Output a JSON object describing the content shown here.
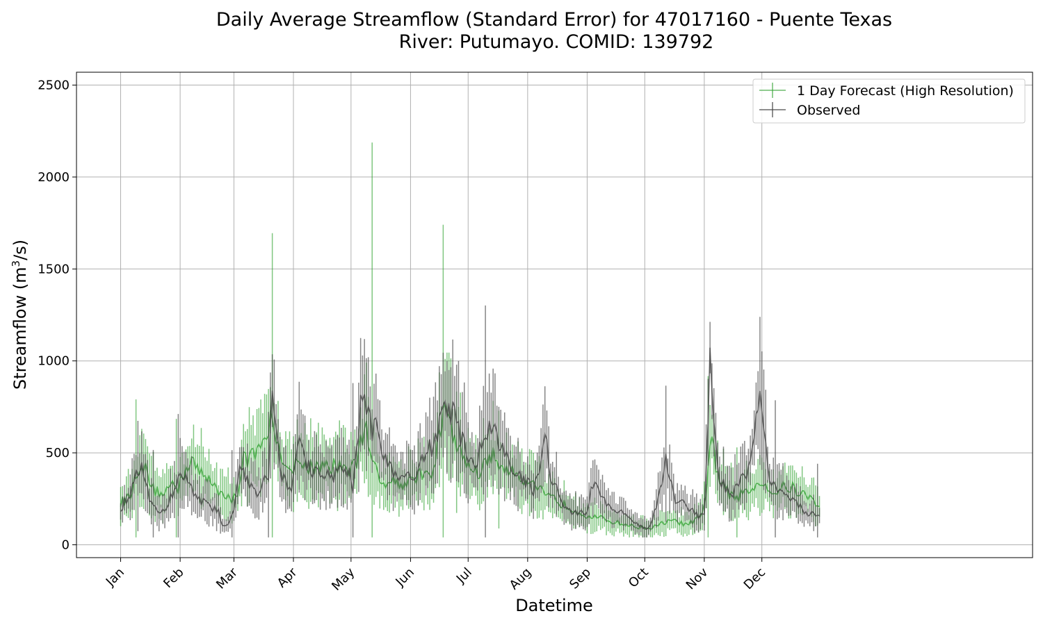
{
  "chart_data": {
    "type": "line",
    "title_line1": "Daily Average Streamflow (Standard Error) for 47017160 - Puente Texas",
    "title_line2": "River: Putumayo. COMID: 139792",
    "xlabel": "Datetime",
    "ylabel_main": "Streamflow (m",
    "ylabel_sup": "3",
    "ylabel_end": "/s)",
    "ylim": [
      -70,
      2570
    ],
    "yticks": [
      0,
      500,
      1000,
      1500,
      2000,
      2500
    ],
    "xlim": [
      -22,
      476
    ],
    "x_unit": "day of year",
    "xticks": [
      {
        "label": "Jan",
        "day": 1
      },
      {
        "label": "Feb",
        "day": 32
      },
      {
        "label": "Mar",
        "day": 60
      },
      {
        "label": "Apr",
        "day": 91
      },
      {
        "label": "May",
        "day": 121
      },
      {
        "label": "Jun",
        "day": 152
      },
      {
        "label": "Jul",
        "day": 182
      },
      {
        "label": "Aug",
        "day": 213
      },
      {
        "label": "Sep",
        "day": 244
      },
      {
        "label": "Oct",
        "day": 274
      },
      {
        "label": "Nov",
        "day": 305
      },
      {
        "label": "Dec",
        "day": 335
      }
    ],
    "grid": true,
    "legend": "top-right",
    "series": [
      {
        "name": "1 Day Forecast (High Resolution)",
        "color": "#2ca02c",
        "anchors": [
          [
            1,
            230
          ],
          [
            6,
            260
          ],
          [
            8,
            330
          ],
          [
            10,
            420
          ],
          [
            12,
            450
          ],
          [
            15,
            380
          ],
          [
            18,
            300
          ],
          [
            22,
            280
          ],
          [
            25,
            300
          ],
          [
            28,
            330
          ],
          [
            31,
            300
          ],
          [
            35,
            420
          ],
          [
            38,
            470
          ],
          [
            41,
            400
          ],
          [
            45,
            360
          ],
          [
            48,
            350
          ],
          [
            52,
            300
          ],
          [
            56,
            280
          ],
          [
            58,
            240
          ],
          [
            60,
            250
          ],
          [
            63,
            310
          ],
          [
            65,
            480
          ],
          [
            68,
            470
          ],
          [
            72,
            490
          ],
          [
            75,
            520
          ],
          [
            78,
            600
          ],
          [
            80,
            750
          ],
          [
            82,
            520
          ],
          [
            85,
            490
          ],
          [
            88,
            440
          ],
          [
            90,
            420
          ],
          [
            93,
            430
          ],
          [
            96,
            440
          ],
          [
            100,
            430
          ],
          [
            104,
            410
          ],
          [
            108,
            420
          ],
          [
            112,
            430
          ],
          [
            116,
            440
          ],
          [
            120,
            420
          ],
          [
            124,
            450
          ],
          [
            127,
            600
          ],
          [
            129,
            700
          ],
          [
            130,
            600
          ],
          [
            132,
            470
          ],
          [
            136,
            380
          ],
          [
            140,
            340
          ],
          [
            144,
            350
          ],
          [
            148,
            330
          ],
          [
            152,
            350
          ],
          [
            156,
            380
          ],
          [
            160,
            360
          ],
          [
            164,
            420
          ],
          [
            167,
            600
          ],
          [
            169,
            700
          ],
          [
            171,
            730
          ],
          [
            174,
            600
          ],
          [
            178,
            500
          ],
          [
            182,
            440
          ],
          [
            186,
            390
          ],
          [
            190,
            420
          ],
          [
            193,
            500
          ],
          [
            196,
            460
          ],
          [
            200,
            420
          ],
          [
            204,
            390
          ],
          [
            208,
            380
          ],
          [
            212,
            360
          ],
          [
            216,
            330
          ],
          [
            220,
            300
          ],
          [
            224,
            260
          ],
          [
            228,
            240
          ],
          [
            232,
            220
          ],
          [
            236,
            200
          ],
          [
            240,
            180
          ],
          [
            244,
            160
          ],
          [
            248,
            150
          ],
          [
            252,
            140
          ],
          [
            256,
            130
          ],
          [
            260,
            120
          ],
          [
            264,
            110
          ],
          [
            268,
            100
          ],
          [
            272,
            95
          ],
          [
            276,
            90
          ],
          [
            280,
            100
          ],
          [
            284,
            120
          ],
          [
            288,
            130
          ],
          [
            292,
            120
          ],
          [
            296,
            110
          ],
          [
            300,
            130
          ],
          [
            304,
            160
          ],
          [
            306,
            250
          ],
          [
            308,
            560
          ],
          [
            309,
            600
          ],
          [
            311,
            420
          ],
          [
            314,
            320
          ],
          [
            318,
            280
          ],
          [
            322,
            260
          ],
          [
            326,
            280
          ],
          [
            330,
            300
          ],
          [
            334,
            360
          ],
          [
            337,
            330
          ],
          [
            340,
            280
          ],
          [
            344,
            300
          ],
          [
            348,
            320
          ],
          [
            352,
            300
          ],
          [
            356,
            280
          ],
          [
            360,
            250
          ],
          [
            364,
            220
          ],
          [
            365,
            220
          ]
        ],
        "spikes": [
          [
            9,
            430
          ],
          [
            30,
            370
          ],
          [
            49,
            80
          ],
          [
            68,
            260
          ],
          [
            80,
            1010
          ],
          [
            104,
            230
          ],
          [
            132,
            1730
          ],
          [
            165,
            130
          ],
          [
            169,
            1000
          ],
          [
            176,
            330
          ],
          [
            198,
            320
          ],
          [
            222,
            80
          ],
          [
            307,
            490
          ],
          [
            322,
            260
          ]
        ]
      },
      {
        "name": "Observed",
        "color": "#444444",
        "anchors": [
          [
            1,
            200
          ],
          [
            3,
            230
          ],
          [
            5,
            240
          ],
          [
            7,
            300
          ],
          [
            9,
            380
          ],
          [
            11,
            430
          ],
          [
            13,
            400
          ],
          [
            15,
            300
          ],
          [
            18,
            200
          ],
          [
            22,
            170
          ],
          [
            26,
            220
          ],
          [
            30,
            350
          ],
          [
            33,
            380
          ],
          [
            36,
            330
          ],
          [
            40,
            280
          ],
          [
            44,
            230
          ],
          [
            48,
            200
          ],
          [
            52,
            180
          ],
          [
            54,
            120
          ],
          [
            56,
            100
          ],
          [
            58,
            150
          ],
          [
            60,
            200
          ],
          [
            62,
            350
          ],
          [
            64,
            420
          ],
          [
            66,
            380
          ],
          [
            70,
            300
          ],
          [
            74,
            280
          ],
          [
            78,
            400
          ],
          [
            80,
            900
          ],
          [
            82,
            600
          ],
          [
            84,
            400
          ],
          [
            88,
            330
          ],
          [
            90,
            300
          ],
          [
            92,
            400
          ],
          [
            94,
            650
          ],
          [
            96,
            480
          ],
          [
            100,
            400
          ],
          [
            104,
            380
          ],
          [
            108,
            400
          ],
          [
            112,
            380
          ],
          [
            116,
            420
          ],
          [
            120,
            400
          ],
          [
            122,
            300
          ],
          [
            124,
            550
          ],
          [
            126,
            750
          ],
          [
            128,
            800
          ],
          [
            130,
            700
          ],
          [
            132,
            600
          ],
          [
            134,
            700
          ],
          [
            136,
            550
          ],
          [
            140,
            450
          ],
          [
            144,
            400
          ],
          [
            148,
            370
          ],
          [
            152,
            380
          ],
          [
            156,
            420
          ],
          [
            160,
            500
          ],
          [
            164,
            550
          ],
          [
            167,
            650
          ],
          [
            169,
            800
          ],
          [
            171,
            750
          ],
          [
            174,
            700
          ],
          [
            178,
            600
          ],
          [
            182,
            480
          ],
          [
            186,
            450
          ],
          [
            190,
            550
          ],
          [
            193,
            700
          ],
          [
            196,
            600
          ],
          [
            200,
            500
          ],
          [
            204,
            450
          ],
          [
            208,
            400
          ],
          [
            212,
            350
          ],
          [
            216,
            300
          ],
          [
            218,
            350
          ],
          [
            220,
            500
          ],
          [
            222,
            650
          ],
          [
            224,
            400
          ],
          [
            228,
            300
          ],
          [
            232,
            200
          ],
          [
            236,
            180
          ],
          [
            240,
            170
          ],
          [
            244,
            180
          ],
          [
            246,
            300
          ],
          [
            248,
            350
          ],
          [
            252,
            250
          ],
          [
            256,
            200
          ],
          [
            260,
            180
          ],
          [
            264,
            170
          ],
          [
            268,
            120
          ],
          [
            272,
            100
          ],
          [
            276,
            90
          ],
          [
            280,
            200
          ],
          [
            283,
            350
          ],
          [
            285,
            500
          ],
          [
            287,
            380
          ],
          [
            290,
            250
          ],
          [
            294,
            220
          ],
          [
            298,
            200
          ],
          [
            302,
            150
          ],
          [
            305,
            170
          ],
          [
            307,
            600
          ],
          [
            308,
            1000
          ],
          [
            310,
            700
          ],
          [
            312,
            400
          ],
          [
            316,
            300
          ],
          [
            320,
            280
          ],
          [
            324,
            350
          ],
          [
            328,
            400
          ],
          [
            330,
            500
          ],
          [
            332,
            700
          ],
          [
            334,
            750
          ],
          [
            336,
            650
          ],
          [
            338,
            400
          ],
          [
            342,
            300
          ],
          [
            346,
            280
          ],
          [
            350,
            250
          ],
          [
            354,
            220
          ],
          [
            358,
            180
          ],
          [
            362,
            160
          ],
          [
            365,
            160
          ]
        ],
        "spikes": [
          [
            10,
            300
          ],
          [
            18,
            300
          ],
          [
            31,
            340
          ],
          [
            59,
            350
          ],
          [
            78,
            370
          ],
          [
            95,
            180
          ],
          [
            122,
            600
          ],
          [
            128,
            300
          ],
          [
            172,
            180
          ],
          [
            191,
            720
          ],
          [
            222,
            260
          ],
          [
            285,
            370
          ],
          [
            308,
            140
          ],
          [
            332,
            170
          ],
          [
            342,
            460
          ],
          [
            364,
            280
          ]
        ]
      }
    ]
  }
}
